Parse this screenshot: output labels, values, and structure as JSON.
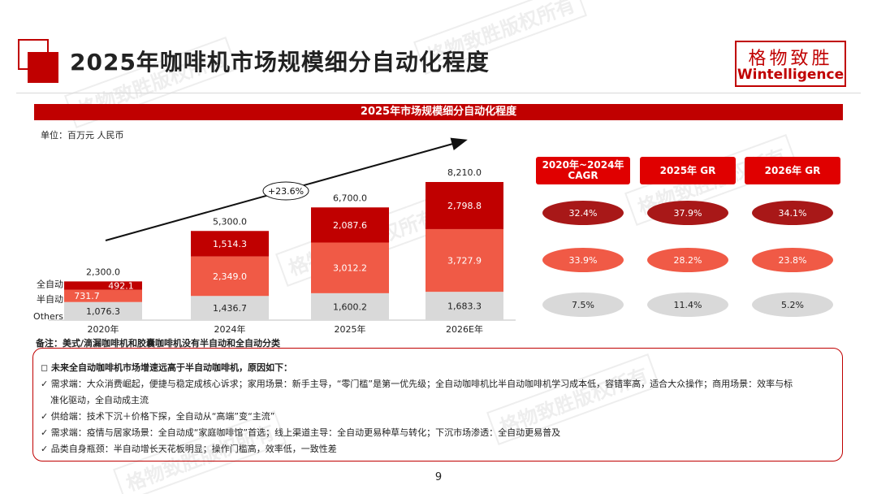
{
  "page": {
    "title": "2025年咖啡机市场规模细分自动化程度",
    "number": "9"
  },
  "logo": {
    "cn": "格物致胜",
    "en": "Wintelligence"
  },
  "watermark": {
    "text": "格物致胜版权所有"
  },
  "colors": {
    "brand_red": "#c00000",
    "full_auto": "#c00000",
    "semi_auto": "#f05a46",
    "others": "#d9d9d9"
  },
  "chart_banner": "2025年市场规模细分自动化程度",
  "unit_label": "单位：百万元 人民币",
  "chart_data": {
    "type": "bar",
    "stacked": true,
    "categories": [
      "2020年",
      "2024年",
      "2025年",
      "2026E年"
    ],
    "series": [
      {
        "name": "Others",
        "values": [
          1076.3,
          1436.7,
          1600.2,
          1683.3
        ],
        "labels": [
          "1,076.3",
          "1,436.7",
          "1,600.2",
          "1,683.3"
        ]
      },
      {
        "name": "半自动",
        "values": [
          731.7,
          2349.0,
          3012.2,
          3727.9
        ],
        "labels": [
          "731.7",
          "2,349.0",
          "3,012.2",
          "3,727.9"
        ]
      },
      {
        "name": "全自动",
        "values": [
          492.1,
          1514.3,
          2087.6,
          2798.8
        ],
        "labels": [
          "492.1",
          "1,514.3",
          "2,087.6",
          "2,798.8"
        ]
      }
    ],
    "totals": [
      2300.0,
      5300.0,
      6700.0,
      8210.0
    ],
    "total_labels": [
      "2,300.0",
      "5,300.0",
      "6,700.0",
      "8,210.0"
    ],
    "legend_labels": [
      "全自动",
      "半自动",
      "Others"
    ],
    "trend_label": "+23.6%",
    "ylim": [
      0,
      8210
    ]
  },
  "metrics": {
    "headers": [
      "2020年~2024年\nCAGR",
      "2025年 GR",
      "2026年 GR"
    ],
    "rows": [
      {
        "series": "全自动",
        "values": [
          "32.4%",
          "37.9%",
          "34.1%"
        ]
      },
      {
        "series": "半自动",
        "values": [
          "33.9%",
          "28.2%",
          "23.8%"
        ]
      },
      {
        "series": "Others",
        "values": [
          "7.5%",
          "11.4%",
          "5.2%"
        ]
      }
    ]
  },
  "footnote": "备注：美式/滴漏咖啡机和胶囊咖啡机没有半自动和全自动分类",
  "reasons": {
    "heading": "◻ 未来全自动咖啡机市场增速远高于半自动咖啡机，原因如下：",
    "lines": [
      "✓ 需求端：大众消费崛起，便捷与稳定成核心诉求；家用场景：新手主导，“零门槛”是第一优先级；全自动咖啡机比半自动咖啡机学习成本低，容错率高，适合大众操作；商用场景：效率与标",
      "准化驱动，全自动成主流",
      "✓ 供给端：技术下沉＋价格下探，全自动从“高端”变“主流”",
      "✓ 需求端：疫情与居家场景：全自动成“家庭咖啡馆”首选；线上渠道主导：全自动更易种草与转化；下沉市场渗透：全自动更易普及",
      "✓ 品类自身瓶颈：半自动增长天花板明显；操作门槛高，效率低，一致性差"
    ]
  }
}
